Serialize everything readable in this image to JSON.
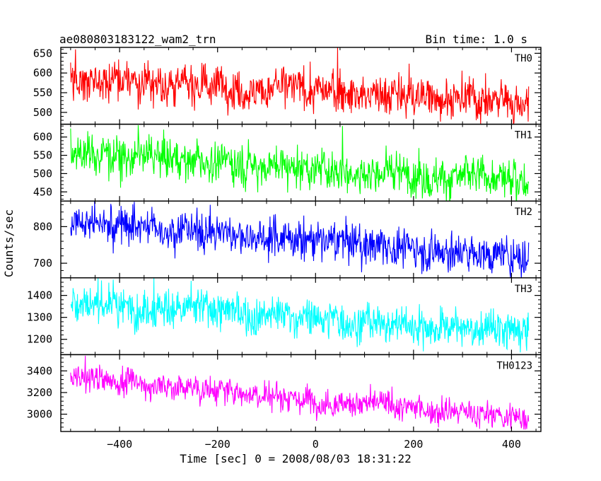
{
  "chart_data": {
    "type": "line",
    "title": "ae080803183122_wam2_trn",
    "subtitle": "Bin time: 1.0 s",
    "xlabel": "Time [sec] 0 = 2008/08/03 18:31:22",
    "ylabel": "Counts/sec",
    "xlim": [
      -520,
      460
    ],
    "x_range": [
      -500,
      435
    ],
    "x_ticks": [
      -400,
      -200,
      0,
      200,
      400
    ],
    "x_tick_labels": [
      "−400",
      "−200",
      "0",
      "200",
      "400"
    ],
    "grid": false,
    "panels": [
      {
        "name": "TH0",
        "color": "#ff0000",
        "ylim": [
          470,
          665
        ],
        "y_ticks": [
          500,
          550,
          600,
          650
        ],
        "trend": {
          "start": 585,
          "end": 528
        },
        "noise": 26,
        "peaks": [
          {
            "x": 45,
            "y": 665
          },
          {
            "x": -490,
            "y": 660
          }
        ]
      },
      {
        "name": "TH1",
        "color": "#00ff00",
        "ylim": [
          425,
          635
        ],
        "y_ticks": [
          450,
          500,
          550,
          600
        ],
        "trend": {
          "start": 560,
          "end": 478
        },
        "noise": 27,
        "peaks": [
          {
            "x": 55,
            "y": 630
          }
        ]
      },
      {
        "name": "TH2",
        "color": "#0000ff",
        "ylim": [
          660,
          870
        ],
        "y_ticks": [
          700,
          800
        ],
        "trend": {
          "start": 818,
          "end": 715
        },
        "noise": 26,
        "peaks": [
          {
            "x": -370,
            "y": 868
          }
        ]
      },
      {
        "name": "TH3",
        "color": "#00ffff",
        "ylim": [
          1130,
          1480
        ],
        "y_ticks": [
          1200,
          1300,
          1400
        ],
        "trend": {
          "start": 1375,
          "end": 1230
        },
        "noise": 42,
        "peaks": [
          {
            "x": -330,
            "y": 1478
          }
        ]
      },
      {
        "name": "TH0123",
        "color": "#ff00ff",
        "ylim": [
          2840,
          3550
        ],
        "y_ticks": [
          3000,
          3200,
          3400
        ],
        "trend": {
          "start": 3345,
          "end": 2955
        },
        "noise": 62,
        "peaks": [
          {
            "x": -470,
            "y": 3540
          }
        ]
      }
    ]
  }
}
